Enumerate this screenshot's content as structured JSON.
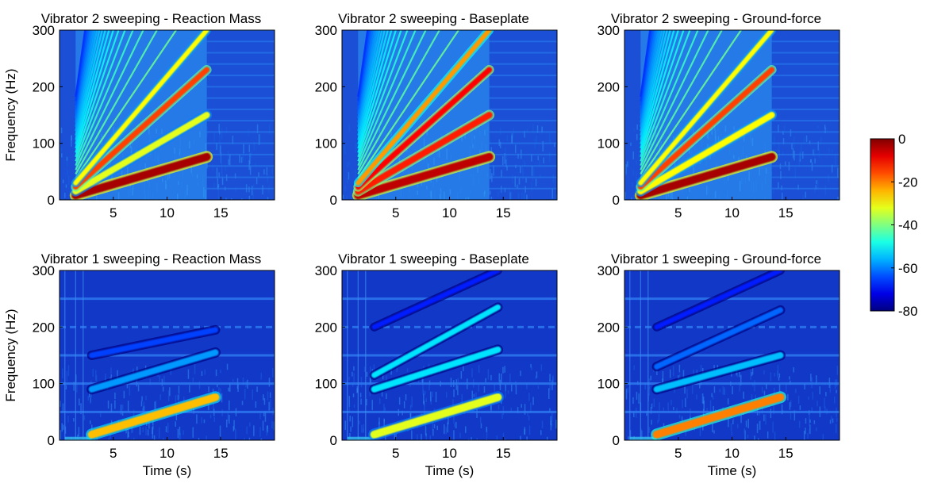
{
  "chart_data": [
    {
      "type": "heatmap",
      "title": "Vibrator 2 sweeping - Reaction Mass",
      "xlabel": "",
      "ylabel": "Frequency (Hz)",
      "xlim": [
        0,
        20
      ],
      "ylim": [
        0,
        300
      ],
      "xticks": [
        5,
        10,
        15
      ],
      "yticks": [
        0,
        100,
        200,
        300
      ],
      "sweep_time_s": [
        1.5,
        13.7
      ],
      "bands": [
        {
          "harmonic": 1,
          "f_start_hz": 8,
          "f_end_hz": 76,
          "level_db": -3
        },
        {
          "harmonic": 2,
          "f_start_hz": 15,
          "f_end_hz": 150,
          "level_db": -32
        },
        {
          "harmonic": 3,
          "f_start_hz": 23,
          "f_end_hz": 230,
          "level_db": -15
        },
        {
          "harmonic": 4,
          "f_start_hz": 30,
          "f_end_hz": 300,
          "level_db": -30
        }
      ]
    },
    {
      "type": "heatmap",
      "title": "Vibrator 2 sweeping - Baseplate",
      "xlabel": "",
      "ylabel": "",
      "xlim": [
        0,
        20
      ],
      "ylim": [
        0,
        300
      ],
      "xticks": [
        5,
        10,
        15
      ],
      "yticks": [
        0,
        100,
        200,
        300
      ],
      "sweep_time_s": [
        1.5,
        13.7
      ],
      "bands": [
        {
          "harmonic": 1,
          "f_start_hz": 8,
          "f_end_hz": 76,
          "level_db": -5
        },
        {
          "harmonic": 2,
          "f_start_hz": 15,
          "f_end_hz": 150,
          "level_db": -12
        },
        {
          "harmonic": 3,
          "f_start_hz": 23,
          "f_end_hz": 230,
          "level_db": -10
        },
        {
          "harmonic": 4,
          "f_start_hz": 30,
          "f_end_hz": 300,
          "level_db": -22
        }
      ]
    },
    {
      "type": "heatmap",
      "title": "Vibrator 2 sweeping - Ground-force",
      "xlabel": "",
      "ylabel": "",
      "xlim": [
        0,
        20
      ],
      "ylim": [
        0,
        300
      ],
      "xticks": [
        5,
        10,
        15
      ],
      "yticks": [
        0,
        100,
        200,
        300
      ],
      "sweep_time_s": [
        1.5,
        13.7
      ],
      "bands": [
        {
          "harmonic": 1,
          "f_start_hz": 8,
          "f_end_hz": 76,
          "level_db": -3
        },
        {
          "harmonic": 2,
          "f_start_hz": 15,
          "f_end_hz": 150,
          "level_db": -30
        },
        {
          "harmonic": 3,
          "f_start_hz": 23,
          "f_end_hz": 230,
          "level_db": -15
        },
        {
          "harmonic": 4,
          "f_start_hz": 30,
          "f_end_hz": 300,
          "level_db": -30
        }
      ]
    },
    {
      "type": "heatmap",
      "title": "Vibrator 1 sweeping - Reaction Mass",
      "xlabel": "Time (s)",
      "ylabel": "Frequency (Hz)",
      "xlim": [
        0,
        20
      ],
      "ylim": [
        0,
        300
      ],
      "xticks": [
        5,
        10,
        15
      ],
      "yticks": [
        0,
        100,
        200,
        300
      ],
      "sweep_time_s": [
        3,
        14.5
      ],
      "bands": [
        {
          "harmonic": 1,
          "f_start_hz": 10,
          "f_end_hz": 76,
          "level_db": -25
        },
        {
          "harmonic": 2,
          "f_start_hz": 90,
          "f_end_hz": 155,
          "level_db": -58
        },
        {
          "harmonic": 3,
          "f_start_hz": 150,
          "f_end_hz": 195,
          "level_db": -65
        }
      ],
      "background_lines_hz": [
        50,
        100,
        150,
        200,
        250
      ]
    },
    {
      "type": "heatmap",
      "title": "Vibrator 1 sweeping - Baseplate",
      "xlabel": "Time (s)",
      "ylabel": "",
      "xlim": [
        0,
        20
      ],
      "ylim": [
        0,
        300
      ],
      "xticks": [
        5,
        10,
        15
      ],
      "yticks": [
        0,
        100,
        200,
        300
      ],
      "sweep_time_s": [
        3,
        14.5
      ],
      "bands": [
        {
          "harmonic": 1,
          "f_start_hz": 10,
          "f_end_hz": 76,
          "level_db": -32
        },
        {
          "harmonic": 2,
          "f_start_hz": 90,
          "f_end_hz": 160,
          "level_db": -52
        },
        {
          "harmonic": 3,
          "f_start_hz": 115,
          "f_end_hz": 235,
          "level_db": -52
        },
        {
          "harmonic": 4,
          "f_start_hz": 200,
          "f_end_hz": 300,
          "level_db": -68
        }
      ],
      "background_lines_hz": [
        50,
        100,
        150,
        200,
        250
      ]
    },
    {
      "type": "heatmap",
      "title": "Vibrator 1 sweeping - Ground-force",
      "xlabel": "Time (s)",
      "ylabel": "",
      "xlim": [
        0,
        20
      ],
      "ylim": [
        0,
        300
      ],
      "xticks": [
        5,
        10,
        15
      ],
      "yticks": [
        0,
        100,
        200,
        300
      ],
      "sweep_time_s": [
        3,
        14.5
      ],
      "bands": [
        {
          "harmonic": 1,
          "f_start_hz": 10,
          "f_end_hz": 76,
          "level_db": -20
        },
        {
          "harmonic": 2,
          "f_start_hz": 90,
          "f_end_hz": 150,
          "level_db": -55
        },
        {
          "harmonic": 3,
          "f_start_hz": 130,
          "f_end_hz": 230,
          "level_db": -62
        },
        {
          "harmonic": 4,
          "f_start_hz": 200,
          "f_end_hz": 300,
          "level_db": -68
        }
      ],
      "background_lines_hz": [
        50,
        100,
        150,
        200,
        250
      ]
    }
  ],
  "colorbar": {
    "colormap": "jet",
    "range": [
      -80,
      0
    ],
    "ticks": [
      0,
      -20,
      -40,
      -60,
      -80
    ]
  }
}
